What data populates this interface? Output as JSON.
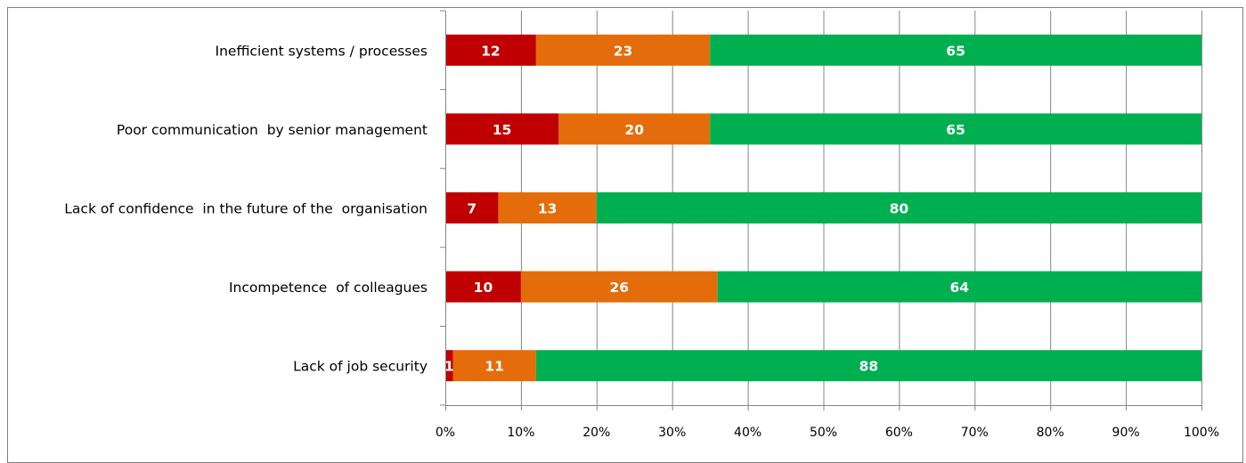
{
  "chart_data": {
    "type": "bar",
    "orientation": "horizontal",
    "stacked": true,
    "categories": [
      "Inefficient systems / processes",
      "Poor communication  by senior management",
      "Lack of confidence  in the future of the  organisation",
      "Incompetence  of colleagues",
      "Lack of job security"
    ],
    "series": [
      {
        "color": "#c00000",
        "values": [
          12,
          15,
          7,
          10,
          1
        ]
      },
      {
        "color": "#e46c0a",
        "values": [
          23,
          20,
          13,
          26,
          11
        ]
      },
      {
        "color": "#00b050",
        "values": [
          65,
          65,
          80,
          64,
          88
        ]
      }
    ],
    "x_ticks": [
      "0%",
      "10%",
      "20%",
      "30%",
      "40%",
      "50%",
      "60%",
      "70%",
      "80%",
      "90%",
      "100%"
    ],
    "xlim": [
      0,
      100
    ],
    "grid": true,
    "legend": "none"
  }
}
